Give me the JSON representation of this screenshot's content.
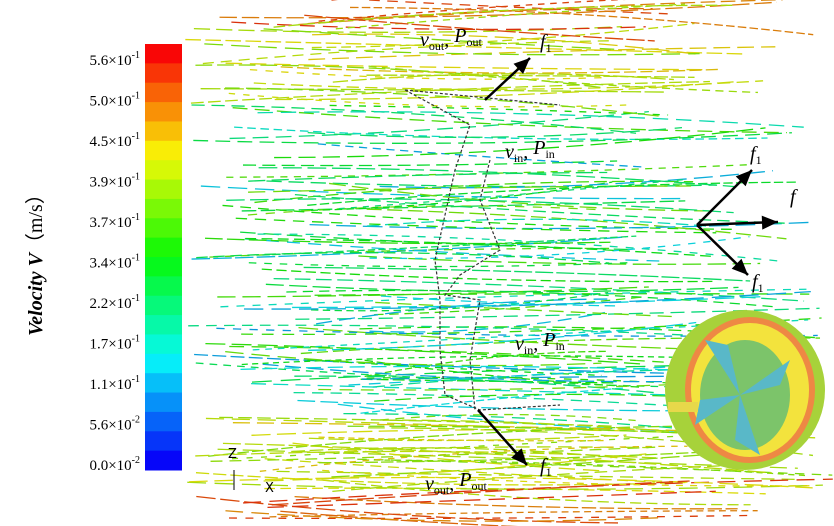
{
  "colorbar": {
    "title": "Velocity V",
    "unit": "（m/s）",
    "labels": [
      {
        "base": "5.6×10",
        "exp": "-1"
      },
      {
        "base": "5.0×10",
        "exp": "-1"
      },
      {
        "base": "4.5×10",
        "exp": "-1"
      },
      {
        "base": "3.9×10",
        "exp": "-1"
      },
      {
        "base": "3.7×10",
        "exp": "-1"
      },
      {
        "base": "3.4×10",
        "exp": "-1"
      },
      {
        "base": "2.2×10",
        "exp": "-1"
      },
      {
        "base": "1.7×10",
        "exp": "-1"
      },
      {
        "base": "1.1×10",
        "exp": "-1"
      },
      {
        "base": "5.6×10",
        "exp": "-2"
      },
      {
        "base": "0.0×10",
        "exp": "-2"
      }
    ]
  },
  "annotations": [
    {
      "parts": [
        "v",
        "out",
        ", ",
        "P",
        "out"
      ]
    },
    {
      "parts": [
        "f",
        "1"
      ]
    },
    {
      "parts": [
        "v",
        "in",
        ", ",
        "P",
        "in"
      ]
    },
    {
      "parts": [
        "f",
        "1"
      ]
    },
    {
      "parts": [
        "f"
      ]
    },
    {
      "parts": [
        "f",
        "1"
      ]
    },
    {
      "parts": [
        "v",
        "in",
        ", ",
        "P",
        "in"
      ]
    },
    {
      "parts": [
        "v",
        "out",
        ", ",
        "P",
        "out"
      ]
    },
    {
      "parts": [
        "f",
        "1"
      ]
    }
  ],
  "axes_triad": {
    "z": "Z",
    "x": "X"
  }
}
